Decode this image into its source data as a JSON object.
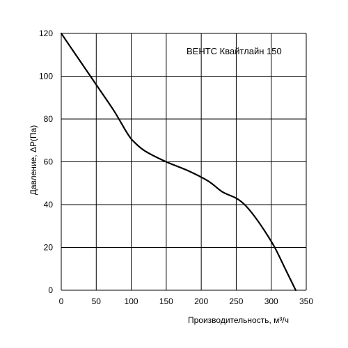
{
  "chart_data": {
    "type": "line",
    "title": "ВЕНТС Квайтлайн 150",
    "xlabel": "Производительность, м³/ч",
    "ylabel": "Давление, ΔP(Па)",
    "xlim": [
      0,
      350
    ],
    "ylim": [
      0,
      120
    ],
    "xticks": [
      0,
      50,
      100,
      150,
      200,
      250,
      300,
      350
    ],
    "yticks": [
      0,
      20,
      40,
      60,
      80,
      100,
      120
    ],
    "grid": true,
    "series": [
      {
        "color": "#000000",
        "x": [
          0,
          25,
          50,
          75,
          95,
          105,
          120,
          150,
          180,
          210,
          230,
          250,
          262,
          275,
          290,
          305,
          320,
          335
        ],
        "y": [
          120,
          108,
          96,
          84,
          73,
          69,
          65,
          60,
          56,
          51,
          46,
          43,
          40,
          35,
          28,
          20,
          10,
          0
        ]
      }
    ]
  }
}
